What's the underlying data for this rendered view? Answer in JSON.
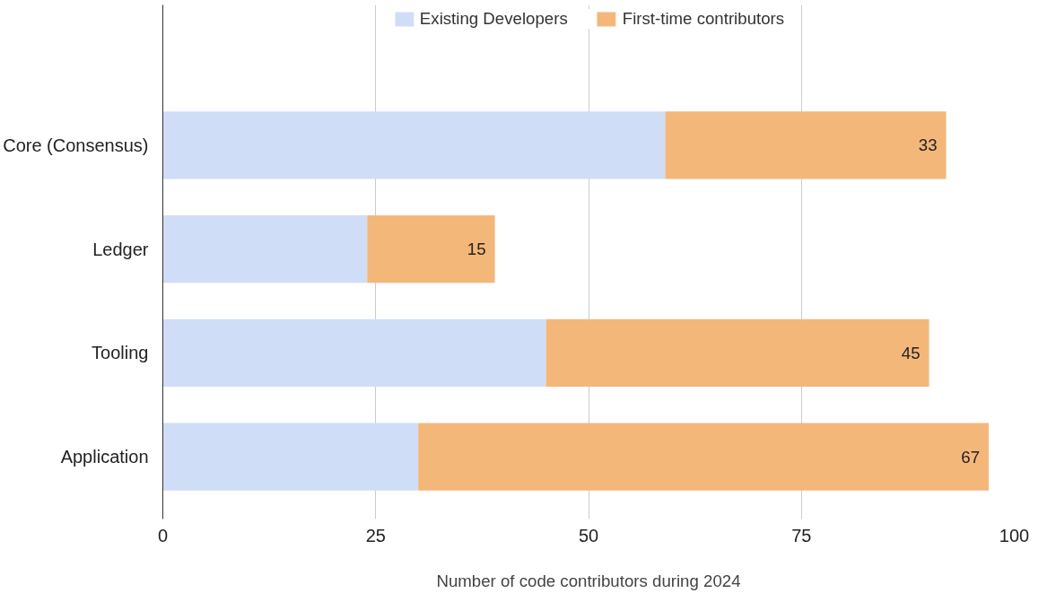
{
  "chart_data": {
    "type": "bar",
    "orientation": "horizontal",
    "stacked": true,
    "categories": [
      "Core (Consensus)",
      "Ledger",
      "Tooling",
      "Application"
    ],
    "series": [
      {
        "name": "Existing Developers",
        "color": "#d0ddf6",
        "values": [
          59,
          24,
          45,
          30
        ]
      },
      {
        "name": "First-time contributors",
        "color": "#f4b77a",
        "values": [
          33,
          15,
          45,
          67
        ],
        "value_labels": [
          "33",
          "15",
          "45",
          "67"
        ]
      }
    ],
    "xlabel": "Number of code contributors during 2024",
    "xlim": [
      0,
      100
    ],
    "xticks": [
      0,
      25,
      50,
      75,
      100
    ],
    "grid": "x",
    "legend": "top"
  }
}
